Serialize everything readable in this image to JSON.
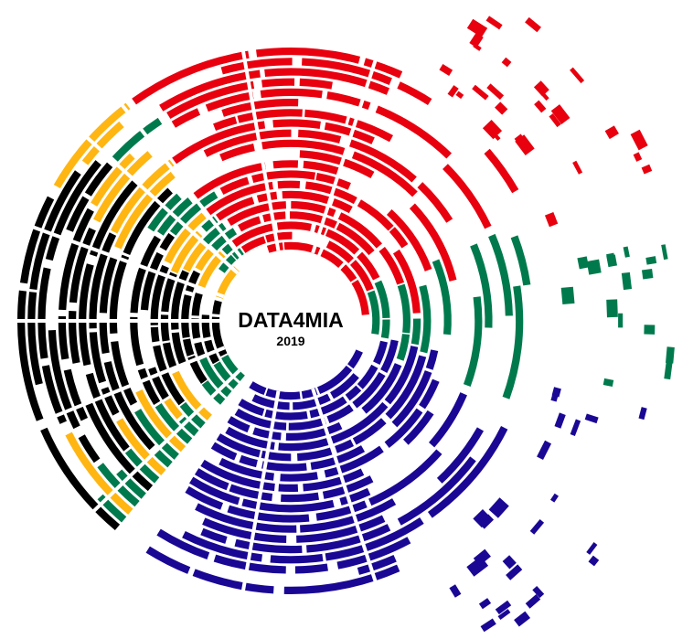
{
  "logo": {
    "title": "DATA4MIA",
    "year": "2019"
  },
  "colors": {
    "red": "#e8000f",
    "green": "#007a4d",
    "black": "#000000",
    "gold": "#ffb612",
    "blue": "#1a0894",
    "background": "#ffffff"
  }
}
